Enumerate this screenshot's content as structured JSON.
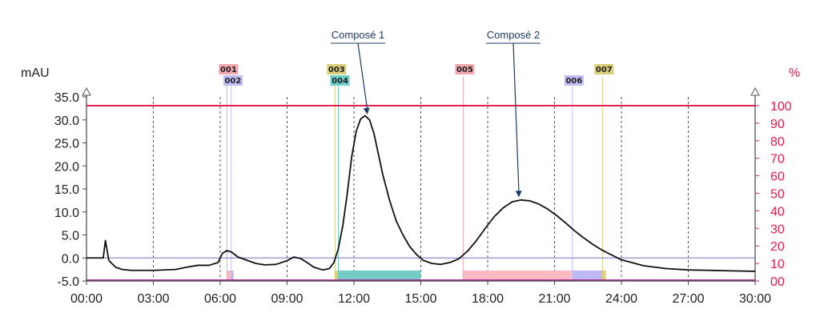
{
  "chart_data": {
    "type": "line",
    "ylabel_left": "mAU",
    "ylabel_right": "%",
    "ylim_left": [
      -5,
      35
    ],
    "ylim_right": [
      0,
      105
    ],
    "xlim_min": [
      0,
      30
    ],
    "y_ticks_left": [
      "-5.0",
      "0.0",
      "5.0",
      "10.0",
      "15.0",
      "20.0",
      "25.0",
      "30.0",
      "35.0"
    ],
    "y_ticks_right": [
      "00",
      "10",
      "20",
      "30",
      "40",
      "50",
      "60",
      "70",
      "80",
      "90",
      "100"
    ],
    "x_ticks": [
      "00:00",
      "03:00",
      "06:00",
      "09:00",
      "12:00",
      "15:00",
      "18:00",
      "21:00",
      "24:00",
      "27:00",
      "30:00"
    ],
    "grid": "vertical-dashed",
    "series": [
      {
        "x": [
          0,
          0.5,
          0.75,
          0.85,
          1,
          1.3,
          1.6,
          2,
          3,
          4,
          4.5,
          5,
          5.5,
          5.9,
          6.1,
          6.3,
          6.5,
          6.8,
          7.2,
          7.6,
          8,
          8.5,
          9,
          9.3,
          9.6,
          9.9,
          10.2,
          10.6,
          10.9,
          11.1,
          11.3,
          11.5,
          11.7,
          11.9,
          12.1,
          12.3,
          12.5,
          12.7,
          12.9,
          13.1,
          13.3,
          13.6,
          13.9,
          14.2,
          14.5,
          14.8,
          15.1,
          15.5,
          15.9,
          16.3,
          16.7,
          17.1,
          17.5,
          17.9,
          18.3,
          18.7,
          19.1,
          19.5,
          19.9,
          20.3,
          20.7,
          21.1,
          21.5,
          21.9,
          22.3,
          22.7,
          23.1,
          23.5,
          24,
          25,
          26,
          27,
          28,
          29,
          30
        ],
        "y": [
          0,
          0,
          0,
          3.8,
          -0.5,
          -2.0,
          -2.5,
          -2.7,
          -2.7,
          -2.5,
          -2.0,
          -1.6,
          -1.6,
          -1.0,
          1.0,
          1.6,
          1.3,
          0.2,
          -0.5,
          -1.2,
          -1.5,
          -1.4,
          -0.6,
          0.2,
          -0.1,
          -1.0,
          -2.0,
          -2.6,
          -2.3,
          -1.0,
          2.0,
          7.0,
          14.0,
          22.0,
          27.5,
          30.2,
          30.9,
          30.0,
          27.0,
          22.5,
          18.0,
          12.5,
          8.0,
          5.0,
          2.5,
          0.8,
          -0.5,
          -1.2,
          -1.4,
          -1.0,
          -0.2,
          1.5,
          3.8,
          6.5,
          9.0,
          10.9,
          12.2,
          12.6,
          12.4,
          11.7,
          10.6,
          9.2,
          7.6,
          5.9,
          4.4,
          3.0,
          1.8,
          0.8,
          -0.4,
          -1.7,
          -2.3,
          -2.6,
          -2.7,
          -2.8,
          -2.9
        ]
      }
    ],
    "gradient_percent": 100,
    "fractions": [
      {
        "label": "001",
        "start": 6.3,
        "end": 6.5,
        "color": "#f9b8c0",
        "tag_color": "#f3a8b0"
      },
      {
        "label": "002",
        "start": 6.5,
        "end": 6.6,
        "color": "#bdb9f5",
        "tag_color": "#c1bdf5"
      },
      {
        "label": "003",
        "start": 11.15,
        "end": 11.3,
        "color": "#e3d06a",
        "tag_color": "#d8cf78"
      },
      {
        "label": "004",
        "start": 11.3,
        "end": 15.0,
        "color": "#74cbc6",
        "tag_color": "#6fd0cb"
      },
      {
        "label": "005",
        "start": 16.9,
        "end": 21.8,
        "color": "#f9bac4",
        "tag_color": "#f3a8b0"
      },
      {
        "label": "006",
        "start": 21.8,
        "end": 23.15,
        "color": "#bdb9f5",
        "tag_color": "#c1bdf5"
      },
      {
        "label": "007",
        "start": 23.15,
        "end": 23.3,
        "color": "#e3d06a",
        "tag_color": "#d8cf78"
      }
    ],
    "annotations": [
      {
        "label": "Composé 1",
        "target_x": 12.6,
        "target_y": 30.5
      },
      {
        "label": "Composé 2",
        "target_x": 19.4,
        "target_y": 12.5
      }
    ]
  }
}
